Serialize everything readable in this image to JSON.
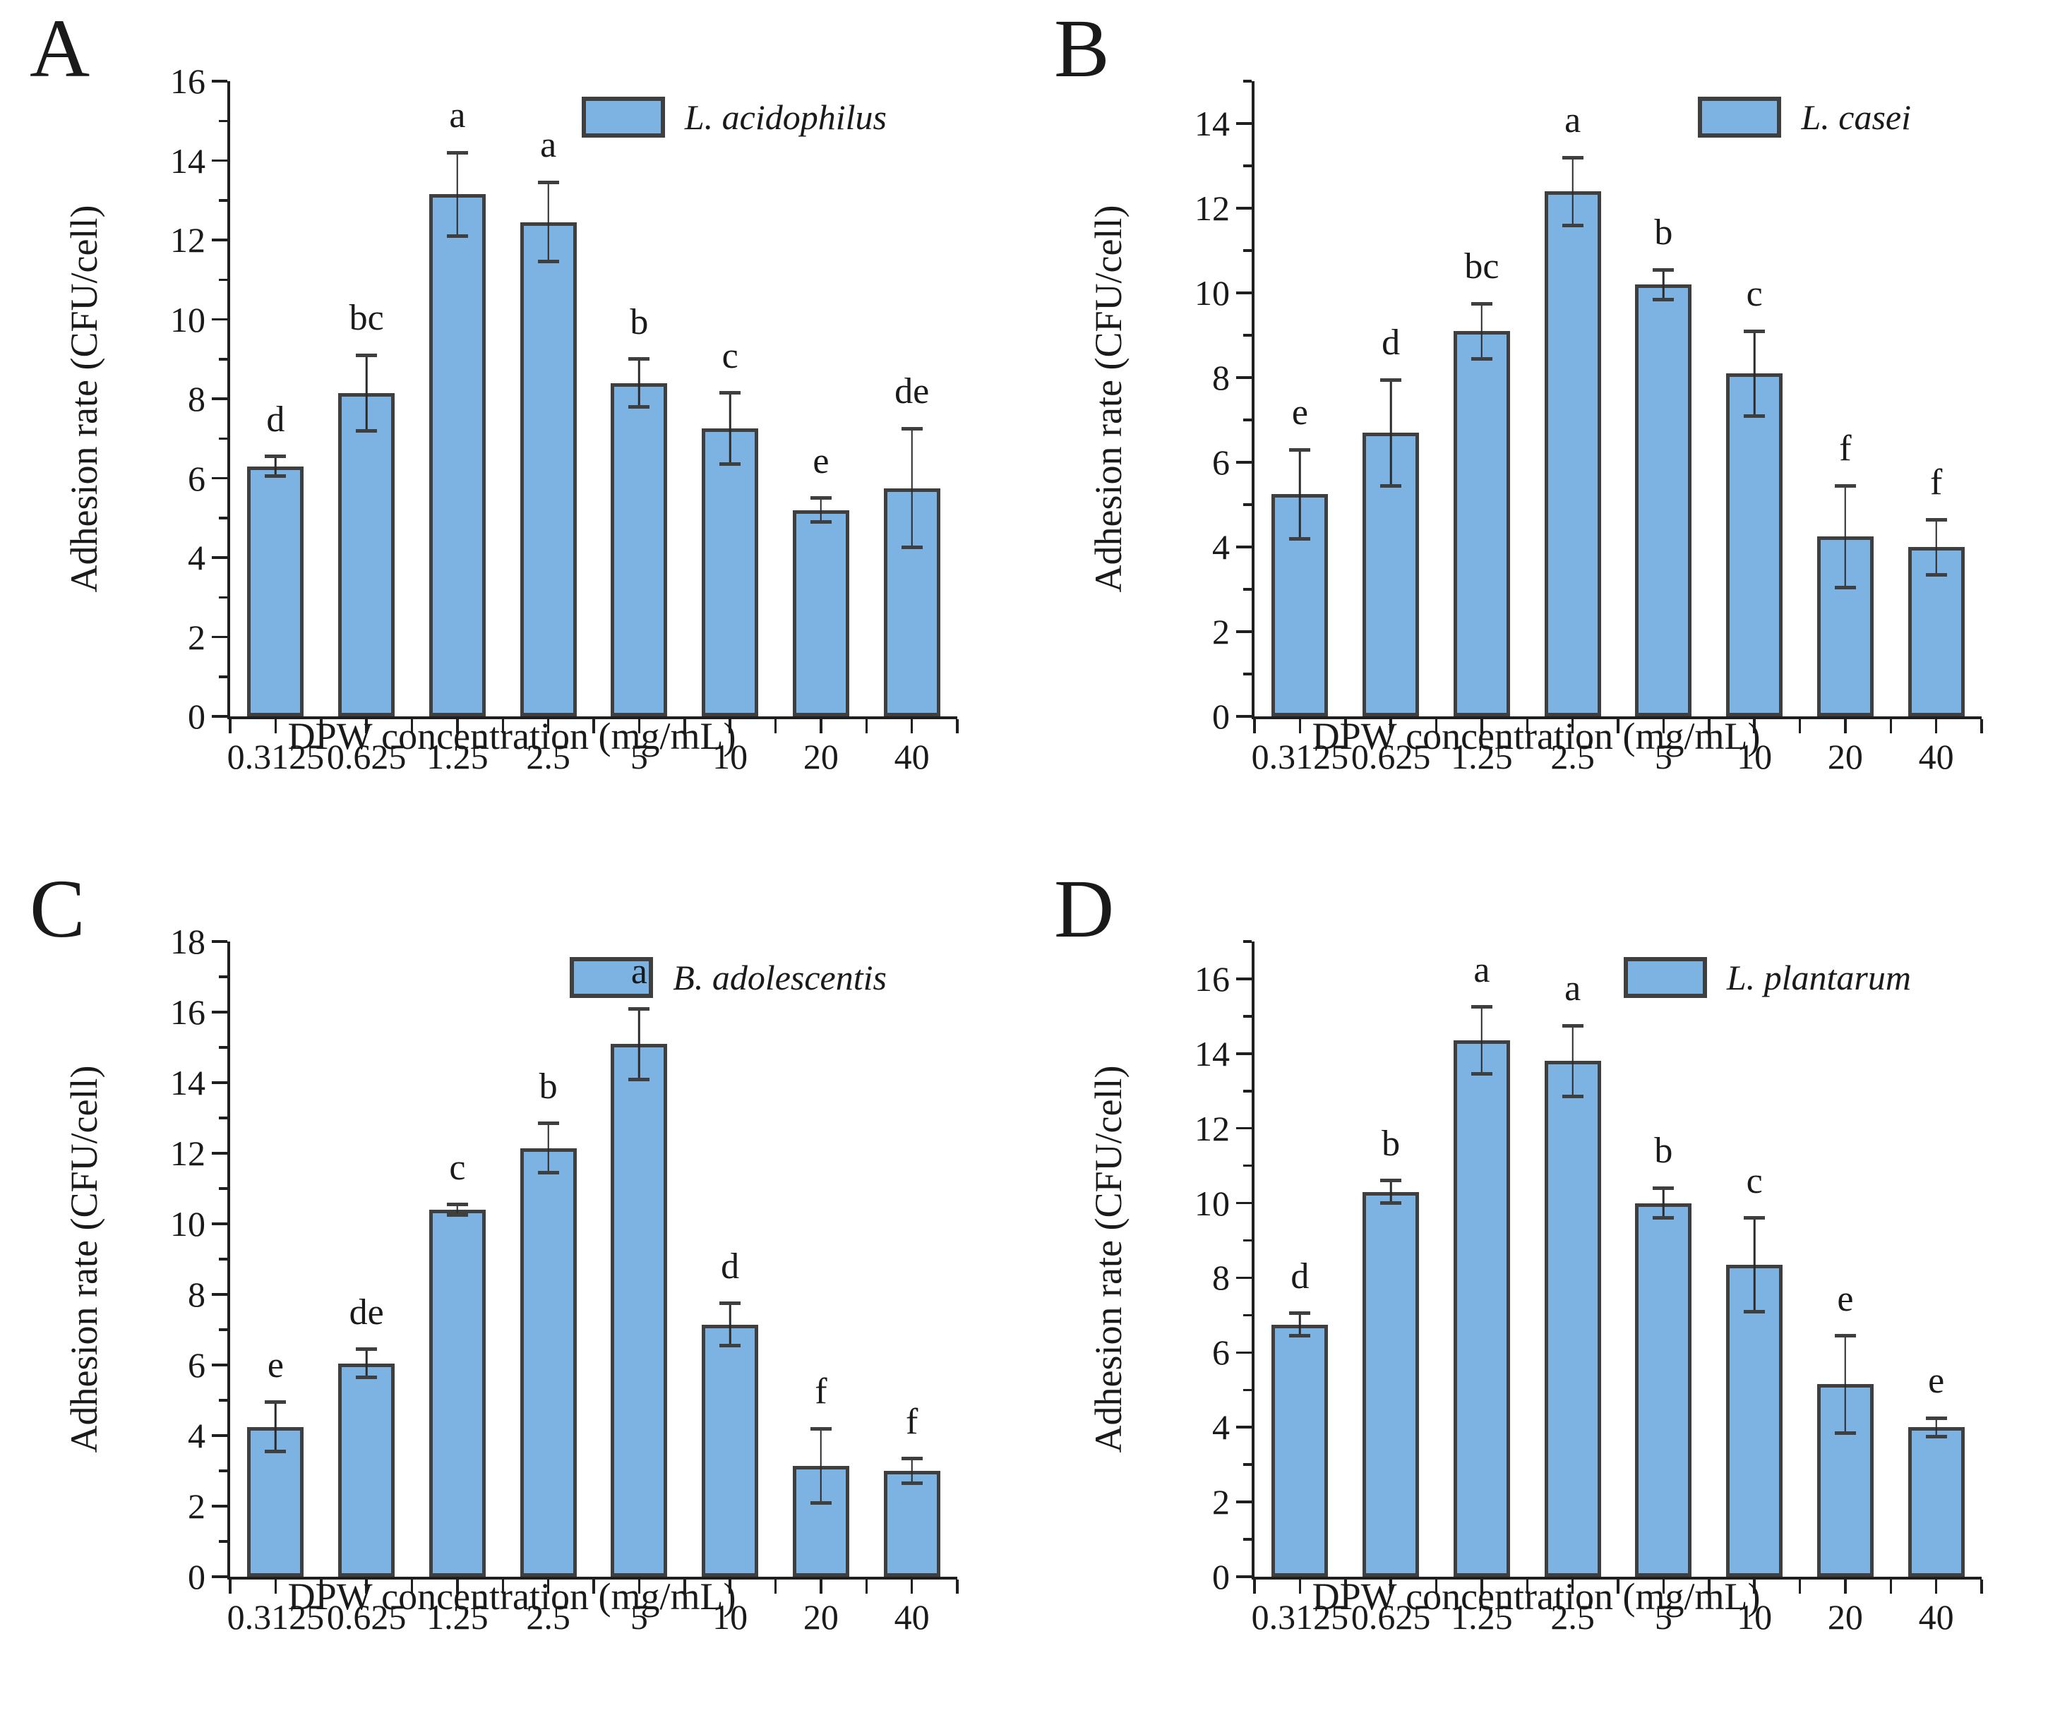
{
  "figure": {
    "ylabel": "Adhesion rate (CFU/cell)",
    "xlabel": "DPW concentration (mg/mL)",
    "colors": {
      "bar_fill": "#7db3e2",
      "bar_border": "#3f3f3f",
      "axis": "#1f1f1f"
    }
  },
  "chart_data": [
    {
      "type": "bar",
      "panel": "A",
      "legend": "L. acidophilus",
      "categories": [
        "0.3125",
        "0.625",
        "1.25",
        "2.5",
        "5",
        "10",
        "20",
        "40"
      ],
      "values": [
        6.3,
        8.15,
        13.15,
        12.45,
        8.4,
        7.25,
        5.2,
        5.75
      ],
      "errors": [
        0.25,
        0.95,
        1.05,
        1.0,
        0.6,
        0.9,
        0.3,
        1.5
      ],
      "letters": [
        "d",
        "bc",
        "a",
        "a",
        "b",
        "c",
        "e",
        "de"
      ],
      "xlabel": "DPW concentration (mg/mL)",
      "ylabel": "Adhesion rate (CFU/cell)",
      "ylim": [
        0,
        16
      ],
      "ytick_max": 16,
      "ytick_step": 2,
      "grid": false,
      "legend_position": "top-right"
    },
    {
      "type": "bar",
      "panel": "B",
      "legend": "L. casei",
      "categories": [
        "0.3125",
        "0.625",
        "1.25",
        "2.5",
        "5",
        "10",
        "20",
        "40"
      ],
      "values": [
        5.25,
        6.7,
        9.1,
        12.4,
        10.2,
        8.1,
        4.25,
        4.0
      ],
      "errors": [
        1.05,
        1.25,
        0.65,
        0.8,
        0.35,
        1.0,
        1.2,
        0.65
      ],
      "letters": [
        "e",
        "d",
        "bc",
        "a",
        "b",
        "c",
        "f",
        "f"
      ],
      "xlabel": "DPW concentration (mg/mL)",
      "ylabel": "Adhesion rate (CFU/cell)",
      "ylim": [
        0,
        15
      ],
      "ytick_max": 14,
      "ytick_step": 2,
      "grid": false,
      "legend_position": "top-right"
    },
    {
      "type": "bar",
      "panel": "C",
      "legend": "B. adolescentis",
      "categories": [
        "0.3125",
        "0.625",
        "1.25",
        "2.5",
        "5",
        "10",
        "20",
        "40"
      ],
      "values": [
        4.25,
        6.05,
        10.4,
        12.15,
        15.1,
        7.15,
        3.15,
        3.0
      ],
      "errors": [
        0.7,
        0.4,
        0.15,
        0.7,
        1.0,
        0.6,
        1.05,
        0.35
      ],
      "letters": [
        "e",
        "de",
        "c",
        "b",
        "a",
        "d",
        "f",
        "f"
      ],
      "xlabel": "DPW concentration (mg/mL)",
      "ylabel": "Adhesion rate (CFU/cell)",
      "ylim": [
        0,
        18
      ],
      "ytick_max": 18,
      "ytick_step": 2,
      "grid": false,
      "legend_position": "top-right"
    },
    {
      "type": "bar",
      "panel": "D",
      "legend": "L. plantarum",
      "categories": [
        "0.3125",
        "0.625",
        "1.25",
        "2.5",
        "5",
        "10",
        "20",
        "40"
      ],
      "values": [
        6.75,
        10.3,
        14.35,
        13.8,
        10.0,
        8.35,
        5.15,
        4.0
      ],
      "errors": [
        0.3,
        0.3,
        0.9,
        0.95,
        0.4,
        1.25,
        1.3,
        0.25
      ],
      "letters": [
        "d",
        "b",
        "a",
        "a",
        "b",
        "c",
        "e",
        "e"
      ],
      "xlabel": "DPW concentration (mg/mL)",
      "ylabel": "Adhesion rate (CFU/cell)",
      "ylim": [
        0,
        17
      ],
      "ytick_max": 16,
      "ytick_step": 2,
      "grid": false,
      "legend_position": "top-right"
    }
  ]
}
